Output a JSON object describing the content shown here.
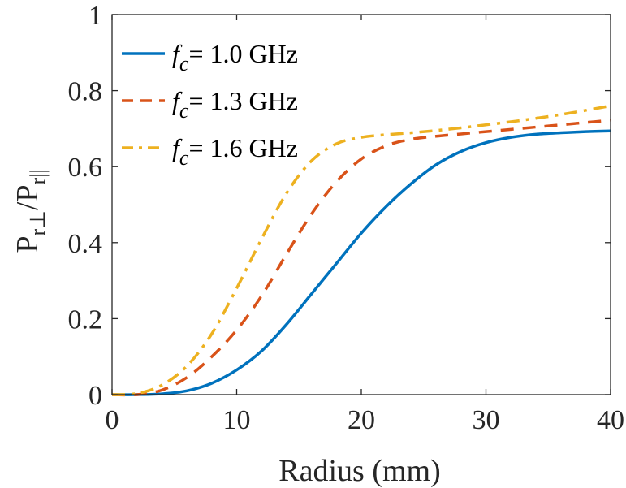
{
  "chart_data": {
    "type": "line",
    "xlabel": "Radius (mm)",
    "ylabel": {
      "base1": "P",
      "sub1": "r⊥",
      "slash": "/",
      "base2": "P",
      "sub2": "r||"
    },
    "xlim": [
      0,
      40
    ],
    "ylim": [
      0,
      1
    ],
    "xticks": [
      0,
      10,
      20,
      30,
      40
    ],
    "xtick_labels": [
      "0",
      "10",
      "20",
      "30",
      "40"
    ],
    "yticks": [
      0,
      0.2,
      0.4,
      0.6,
      0.8,
      1
    ],
    "ytick_labels": [
      "0",
      "0.2",
      "0.4",
      "0.6",
      "0.8",
      "1"
    ],
    "grid": false,
    "legend_position": "top-left",
    "x": [
      0,
      2,
      4,
      6,
      8,
      10,
      12,
      14,
      16,
      18,
      20,
      22,
      24,
      26,
      28,
      30,
      32,
      34,
      36,
      38,
      40
    ],
    "series": [
      {
        "name": "f_c = 1.0 GHz",
        "legend_symbol": "f",
        "legend_sub": "c",
        "legend_rest": "= 1.0 GHz",
        "color": "#0072BD",
        "style": "solid",
        "values": [
          0.0,
          0.0,
          0.002,
          0.01,
          0.03,
          0.065,
          0.115,
          0.185,
          0.265,
          0.345,
          0.425,
          0.495,
          0.555,
          0.605,
          0.64,
          0.663,
          0.677,
          0.685,
          0.689,
          0.692,
          0.694
        ]
      },
      {
        "name": "f_c = 1.3 GHz",
        "legend_symbol": "f",
        "legend_sub": "c",
        "legend_rest": "= 1.3 GHz",
        "color": "#D95319",
        "style": "dashed",
        "values": [
          0.0,
          0.0,
          0.012,
          0.045,
          0.1,
          0.17,
          0.26,
          0.37,
          0.475,
          0.56,
          0.62,
          0.655,
          0.672,
          0.68,
          0.686,
          0.692,
          0.698,
          0.704,
          0.71,
          0.716,
          0.722
        ]
      },
      {
        "name": "f_c = 1.6 GHz",
        "legend_symbol": "f",
        "legend_sub": "c",
        "legend_rest": "= 1.6 GHz",
        "color": "#EDB120",
        "style": "dashdot",
        "values": [
          0.0,
          0.003,
          0.025,
          0.075,
          0.16,
          0.28,
          0.41,
          0.53,
          0.615,
          0.66,
          0.677,
          0.684,
          0.689,
          0.695,
          0.702,
          0.71,
          0.718,
          0.727,
          0.737,
          0.748,
          0.76
        ]
      }
    ]
  }
}
